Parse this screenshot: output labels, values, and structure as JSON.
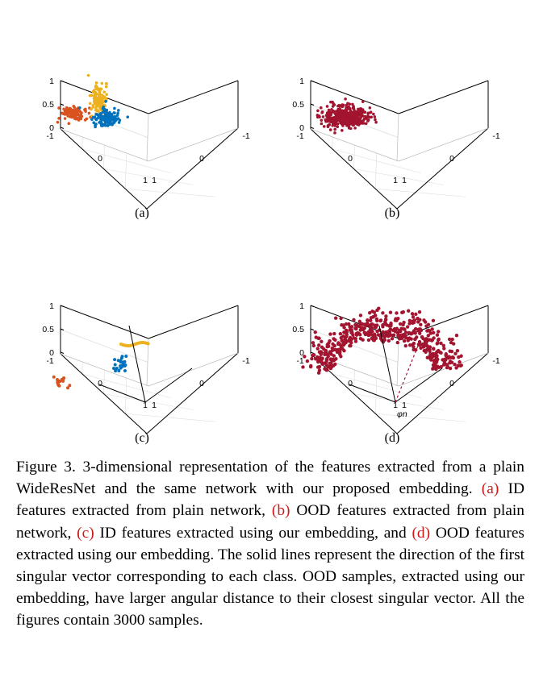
{
  "figure": {
    "panels": [
      {
        "label": "(a)",
        "points": "separated-clusters",
        "lines": false
      },
      {
        "label": "(b)",
        "points": "single-cluster",
        "lines": false
      },
      {
        "label": "(c)",
        "points": "separated-clusters",
        "lines": true
      },
      {
        "label": "(d)",
        "points": "hemisphere",
        "lines": true,
        "annotation": "φn"
      }
    ],
    "axis_ticks": {
      "z": [
        "1",
        "0.5",
        "0"
      ],
      "x": [
        "-1",
        "0",
        "1"
      ],
      "y": [
        "1",
        "0",
        "-1"
      ]
    },
    "colors": {
      "orange": "#d9531e",
      "yellow": "#edb120",
      "blue": "#0072bd",
      "crimson": "#a2142f"
    }
  },
  "caption": {
    "prefix": "Figure 3.  3-dimensional representation of the features extracted from a plain WideResNet and the same network with our proposed embedding.",
    "ref_a": "(a)",
    "text_a": "ID features extracted from plain network,",
    "ref_b": "(b)",
    "text_b": "OOD features extracted from plain network,",
    "ref_c": "(c)",
    "text_c": "ID features extracted using our embedding, and",
    "ref_d": "(d)",
    "text_d": "OOD features extracted using our embedding. The solid lines represent the direction of the first singular vector corresponding to each class. OOD samples, extracted using our embedding, have larger angular distance to their closest singular vector. All the figures contain 3000 samples."
  }
}
